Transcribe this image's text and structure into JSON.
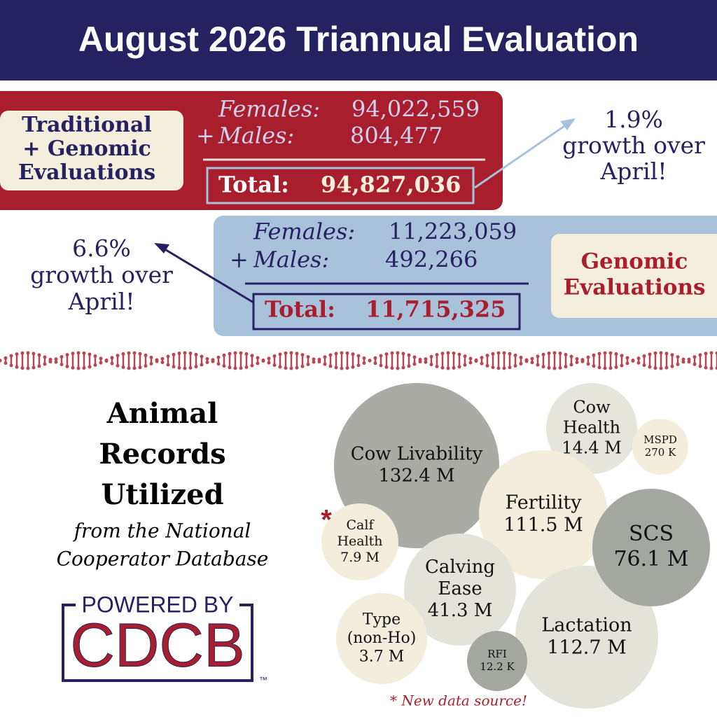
{
  "header": {
    "title": "August 2026 Triannual Evaluation"
  },
  "traditional": {
    "label": [
      "Traditional",
      "+ Genomic",
      "Evaluations"
    ],
    "females_label": "Females:",
    "females": "94,022,559",
    "plus": "+",
    "males_label": "Males:",
    "males": "804,477",
    "total_label": "Total:",
    "total": "94,827,036",
    "growth": [
      "1.9%",
      "growth over",
      "April!"
    ]
  },
  "genomic": {
    "label": [
      "Genomic",
      "Evaluations"
    ],
    "females_label": "Females:",
    "females": "11,223,059",
    "plus": "+",
    "males_label": "Males:",
    "males": "492,266",
    "total_label": "Total:",
    "total": "11,715,325",
    "growth": [
      "6.6%",
      "growth over",
      "April!"
    ]
  },
  "records": {
    "title": [
      "Animal",
      "Records",
      "Utilized"
    ],
    "subtitle": [
      "from the National",
      "Cooperator Database"
    ],
    "powered_by": "POWERED BY",
    "logo": "CDCB",
    "trademark": "™",
    "bubbles": [
      {
        "lines": [
          "Cow Livability"
        ],
        "value": "132.4 M"
      },
      {
        "lines": [
          "Cow",
          "Health"
        ],
        "value": "14.4 M"
      },
      {
        "lines": [
          "MSPD"
        ],
        "value": "270 K"
      },
      {
        "lines": [
          "Fertility"
        ],
        "value": "111.5 M"
      },
      {
        "lines": [
          "Lactation"
        ],
        "value": "112.7 M"
      },
      {
        "lines": [
          "SCS"
        ],
        "value": "76.1 M"
      },
      {
        "lines": [
          "Calf",
          "Health"
        ],
        "value": "7.9 M"
      },
      {
        "lines": [
          "Calving",
          "Ease"
        ],
        "value": "41.3 M"
      },
      {
        "lines": [
          "Type",
          "(non-Ho)"
        ],
        "value": "3.7 M"
      },
      {
        "lines": [
          "RFI"
        ],
        "value": "12.2 K"
      }
    ],
    "asterisk": "*",
    "footnote": "* New data source!"
  }
}
